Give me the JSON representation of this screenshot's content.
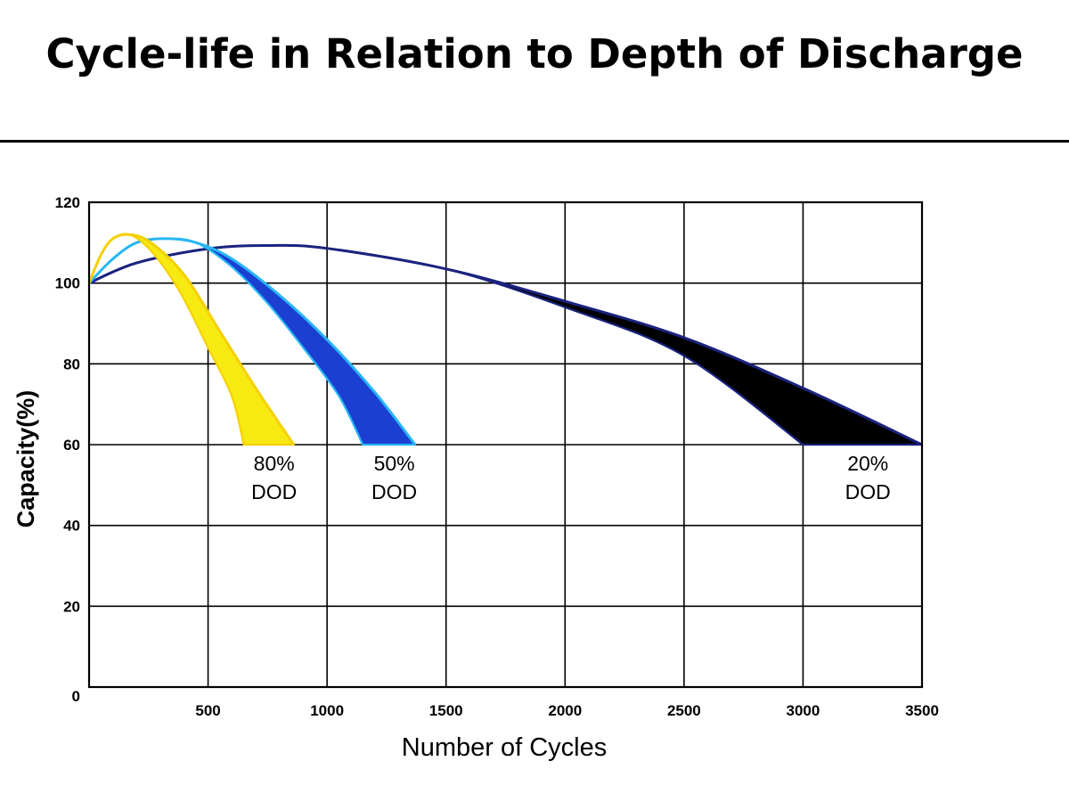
{
  "page": {
    "title": "Cycle-life in Relation to Depth of Discharge"
  },
  "chart_data": {
    "type": "area",
    "xlabel": "Number of Cycles",
    "ylabel": "Capacity(%)",
    "xlim": [
      0,
      3500
    ],
    "ylim": [
      0,
      120
    ],
    "x_ticks": [
      500,
      1000,
      1500,
      2000,
      2500,
      3000,
      3500
    ],
    "y_ticks": [
      0,
      20,
      40,
      60,
      80,
      100,
      120
    ],
    "grid": true,
    "series": [
      {
        "label_lines": [
          "20%",
          "DOD"
        ],
        "color": "#000000",
        "edge_color": "#1a237e",
        "upper": [
          [
            0,
            100
          ],
          [
            200,
            105
          ],
          [
            500,
            108.5
          ],
          [
            750,
            109.3
          ],
          [
            1000,
            108.6
          ],
          [
            1500,
            103.5
          ],
          [
            2000,
            95.5
          ],
          [
            2500,
            86.5
          ],
          [
            3000,
            74
          ],
          [
            3500,
            60
          ]
        ],
        "lower": [
          [
            0,
            100
          ],
          [
            200,
            105
          ],
          [
            500,
            108.5
          ],
          [
            750,
            109.3
          ],
          [
            1000,
            108.6
          ],
          [
            1500,
            103.5
          ],
          [
            2000,
            94
          ],
          [
            2500,
            82
          ],
          [
            3000,
            60
          ]
        ]
      },
      {
        "label_lines": [
          "50%",
          "DOD"
        ],
        "color": "#1a3fd1",
        "edge_color": "#29b6f6",
        "upper": [
          [
            0,
            100
          ],
          [
            100,
            106
          ],
          [
            200,
            110
          ],
          [
            320,
            111
          ],
          [
            450,
            110
          ],
          [
            600,
            106
          ],
          [
            800,
            97
          ],
          [
            1000,
            86
          ],
          [
            1200,
            73
          ],
          [
            1370,
            60
          ]
        ],
        "lower": [
          [
            0,
            100
          ],
          [
            100,
            106
          ],
          [
            200,
            110
          ],
          [
            320,
            111
          ],
          [
            450,
            110
          ],
          [
            600,
            104
          ],
          [
            750,
            95
          ],
          [
            900,
            84
          ],
          [
            1050,
            72
          ],
          [
            1150,
            60
          ]
        ]
      },
      {
        "label_lines": [
          "80%",
          "DOD"
        ],
        "color": "#f7ea12",
        "edge_color": "#f5d000",
        "upper": [
          [
            0,
            100
          ],
          [
            50,
            107
          ],
          [
            100,
            111
          ],
          [
            170,
            112
          ],
          [
            260,
            110
          ],
          [
            400,
            102
          ],
          [
            550,
            88
          ],
          [
            700,
            74
          ],
          [
            860,
            60
          ]
        ],
        "lower": [
          [
            0,
            100
          ],
          [
            50,
            107
          ],
          [
            100,
            111
          ],
          [
            170,
            112
          ],
          [
            260,
            108
          ],
          [
            380,
            98
          ],
          [
            500,
            84
          ],
          [
            600,
            72
          ],
          [
            650,
            60
          ]
        ]
      }
    ]
  }
}
